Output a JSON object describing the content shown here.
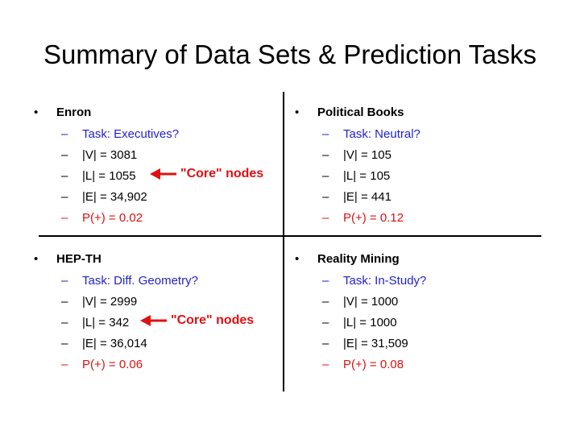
{
  "slide": {
    "title": "Summary of Data Sets & Prediction Tasks"
  },
  "quadrants": [
    {
      "name": "Enron",
      "items": [
        {
          "text": "Task: Executives?",
          "color": "blue"
        },
        {
          "text": "|V| = 3081",
          "color": "black"
        },
        {
          "text": "|L| = 1055",
          "color": "black"
        },
        {
          "text": "|E| = 34,902",
          "color": "black"
        },
        {
          "text": "P(+) = 0.02",
          "color": "red"
        }
      ]
    },
    {
      "name": "Political Books",
      "items": [
        {
          "text": "Task: Neutral?",
          "color": "blue"
        },
        {
          "text": "|V| = 105",
          "color": "black"
        },
        {
          "text": "|L| = 105",
          "color": "black"
        },
        {
          "text": "|E| = 441",
          "color": "black"
        },
        {
          "text": "P(+) = 0.12",
          "color": "red"
        }
      ]
    },
    {
      "name": "HEP-TH",
      "items": [
        {
          "text": "Task: Diff. Geometry?",
          "color": "blue"
        },
        {
          "text": "|V| = 2999",
          "color": "black"
        },
        {
          "text": "|L| = 342",
          "color": "black"
        },
        {
          "text": "|E| = 36,014",
          "color": "black"
        },
        {
          "text": "P(+) = 0.06",
          "color": "red"
        }
      ]
    },
    {
      "name": "Reality Mining",
      "items": [
        {
          "text": "Task: In-Study?",
          "color": "blue"
        },
        {
          "text": "|V| = 1000",
          "color": "black"
        },
        {
          "text": "|L| = 1000",
          "color": "black"
        },
        {
          "text": "|E| = 31,509",
          "color": "black"
        },
        {
          "text": "P(+) = 0.08",
          "color": "red"
        }
      ]
    }
  ],
  "annotations": [
    {
      "text": "\"Core\" nodes",
      "icon": "left-arrow-icon"
    },
    {
      "text": "\"Core\" nodes",
      "icon": "left-arrow-icon"
    }
  ],
  "bullet_glyph": "•",
  "dash_glyph": "–",
  "colors": {
    "blue": "#1f1fd0",
    "red": "#e01010",
    "black": "#000000",
    "divider": "#000000"
  }
}
